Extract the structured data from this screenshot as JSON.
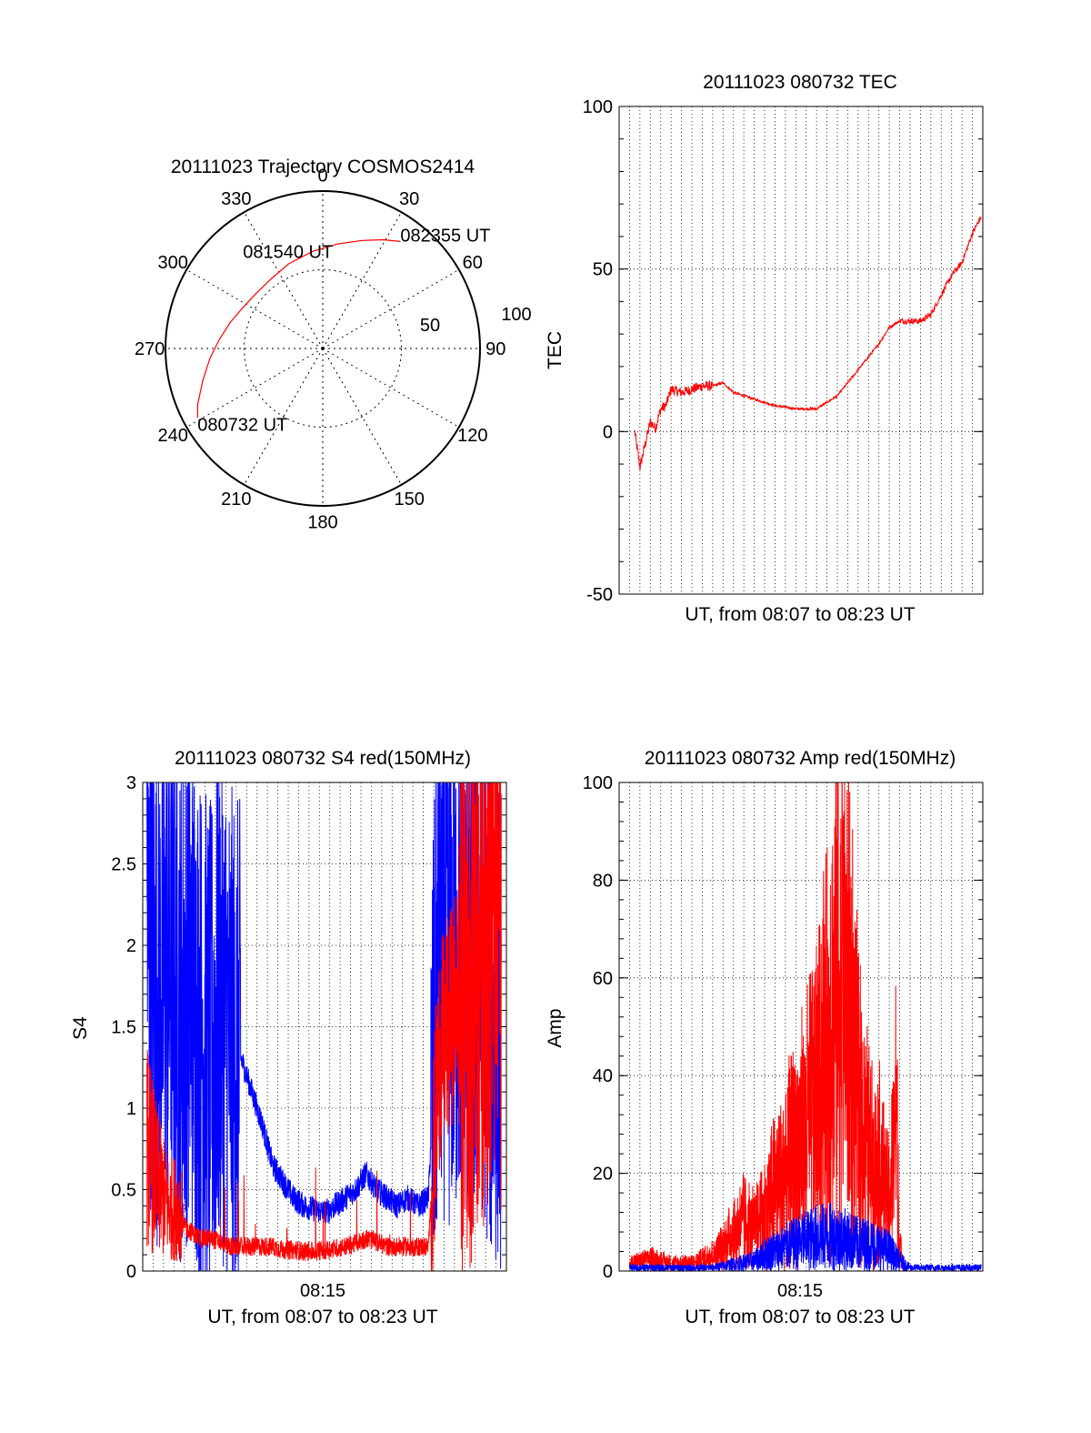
{
  "chart_data": [
    {
      "type": "polar",
      "title": "20111023 Trajectory COSMOS2414",
      "azimuth_labels": [
        "0",
        "30",
        "60",
        "90",
        "120",
        "150",
        "180",
        "210",
        "240",
        "270",
        "300",
        "330"
      ],
      "azimuth_degrees": [
        0,
        30,
        60,
        90,
        120,
        150,
        180,
        210,
        240,
        270,
        300,
        330
      ],
      "radial_range": [
        0,
        100
      ],
      "radial_rings": [
        50,
        100
      ],
      "radial_labels": [
        "50",
        "100"
      ],
      "grid": true,
      "series": [
        {
          "color": "#ff0000",
          "az": [
            241,
            246,
            255,
            265,
            275,
            286,
            297,
            309,
            323,
            338,
            354,
            8,
            20,
            29,
            36
          ],
          "r": [
            91,
            87,
            79,
            72,
            66,
            61,
            57,
            55,
            55,
            58,
            62,
            67,
            73,
            79,
            84
          ]
        }
      ],
      "annotations": [
        {
          "text": "080732 UT",
          "az": 241,
          "r": 91
        },
        {
          "text": "081540 UT",
          "az": 335,
          "r": 38
        },
        {
          "text": "082355 UT",
          "az": 36,
          "r": 84
        }
      ]
    },
    {
      "type": "line",
      "title": "20111023 080732 TEC",
      "xlabel": "UT, from 08:07 to 08:23 UT",
      "ylabel": "TEC",
      "xlim": [
        "08:06:30",
        "08:24:00"
      ],
      "ylim": [
        -50,
        100
      ],
      "yticks": [
        -50,
        0,
        50,
        100
      ],
      "grid": true,
      "series": [
        {
          "color": "#ff0000",
          "x": [
            "08:07:15",
            "08:07:30",
            "08:07:45",
            "08:08:00",
            "08:08:15",
            "08:08:30",
            "08:08:45",
            "08:09:00",
            "08:09:30",
            "08:10:00",
            "08:10:30",
            "08:11:00",
            "08:11:30",
            "08:12:00",
            "08:13:00",
            "08:14:00",
            "08:15:00",
            "08:16:00",
            "08:17:00",
            "08:18:00",
            "08:19:00",
            "08:19:30",
            "08:20:00",
            "08:20:30",
            "08:21:00",
            "08:21:30",
            "08:22:00",
            "08:22:30",
            "08:23:00",
            "08:23:30",
            "08:23:55"
          ],
          "y": [
            0,
            -11,
            -4,
            3,
            1,
            7,
            8,
            13,
            12,
            13,
            14,
            14,
            15,
            12,
            10,
            8,
            7,
            7,
            11,
            19,
            27,
            32,
            34,
            34,
            34,
            36,
            42,
            48,
            52,
            61,
            66
          ]
        }
      ]
    },
    {
      "type": "line",
      "title": "20111023 080732 S4 red(150MHz)",
      "xlabel": "UT, from 08:07 to 08:23 UT",
      "ylabel": "S4",
      "xlim": [
        "08:06:30",
        "08:24:00"
      ],
      "ylim": [
        0,
        3
      ],
      "yticks": [
        0,
        0.5,
        1,
        1.5,
        2,
        2.5,
        3
      ],
      "ytick_labels": [
        "0",
        "0.5",
        "1",
        "1.5",
        "2",
        "2.5",
        "3"
      ],
      "xticks": [
        "08:15"
      ],
      "grid": true,
      "series": [
        {
          "color": "#0000ff",
          "x": [
            "08:06:42",
            "08:07:15",
            "08:07:45",
            "08:08:15",
            "08:08:45",
            "08:09:15",
            "08:09:45",
            "08:10:15",
            "08:10:45",
            "08:11:15",
            "08:11:45",
            "08:12:15",
            "08:12:45",
            "08:13:15",
            "08:13:45",
            "08:14:15",
            "08:14:45",
            "08:15:15",
            "08:15:45",
            "08:16:15",
            "08:16:45",
            "08:17:15",
            "08:17:45",
            "08:18:15",
            "08:18:45",
            "08:19:15",
            "08:19:45",
            "08:20:15",
            "08:20:45",
            "08:21:15",
            "08:21:45",
            "08:22:15",
            "08:22:45",
            "08:23:15",
            "08:23:45"
          ],
          "y": [
            2.1,
            1.7,
            1.9,
            1.6,
            1.8,
            1.5,
            1.3,
            1.7,
            1.4,
            1.3,
            1.1,
            0.9,
            0.65,
            0.55,
            0.45,
            0.4,
            0.38,
            0.36,
            0.4,
            0.45,
            0.5,
            0.6,
            0.5,
            0.45,
            0.4,
            0.45,
            0.4,
            0.45,
            2.0,
            1.8,
            1.9,
            1.7,
            2.0,
            1.6,
            1.6
          ]
        },
        {
          "color": "#ff0000",
          "x": [
            "08:06:42",
            "08:07:15",
            "08:07:45",
            "08:08:15",
            "08:08:45",
            "08:09:15",
            "08:09:45",
            "08:10:15",
            "08:10:45",
            "08:11:15",
            "08:11:45",
            "08:12:15",
            "08:12:45",
            "08:13:15",
            "08:13:45",
            "08:14:15",
            "08:14:45",
            "08:15:15",
            "08:15:45",
            "08:16:15",
            "08:16:45",
            "08:17:15",
            "08:17:45",
            "08:18:15",
            "08:18:45",
            "08:19:15",
            "08:19:45",
            "08:20:15",
            "08:20:45",
            "08:21:15",
            "08:21:45",
            "08:22:15",
            "08:22:45",
            "08:23:15",
            "08:23:45"
          ],
          "y": [
            0.6,
            0.4,
            0.3,
            0.3,
            0.25,
            0.2,
            0.2,
            0.18,
            0.15,
            0.15,
            0.15,
            0.15,
            0.15,
            0.13,
            0.13,
            0.12,
            0.12,
            0.13,
            0.14,
            0.15,
            0.17,
            0.2,
            0.18,
            0.15,
            0.15,
            0.15,
            0.15,
            0.15,
            1.3,
            1.5,
            1.8,
            2.0,
            2.2,
            2.4,
            2.2
          ]
        }
      ]
    },
    {
      "type": "line",
      "title": "20111023 080732 Amp red(150MHz)",
      "xlabel": "UT, from 08:07 to 08:23 UT",
      "ylabel": "Amp",
      "xlim": [
        "08:06:30",
        "08:24:00"
      ],
      "ylim": [
        0,
        100
      ],
      "yticks": [
        0,
        20,
        40,
        60,
        80,
        100
      ],
      "xticks": [
        "08:15"
      ],
      "grid": true,
      "series": [
        {
          "color": "#ff0000",
          "x": [
            "08:07:00",
            "08:08:00",
            "08:09:00",
            "08:10:00",
            "08:11:00",
            "08:11:30",
            "08:12:00",
            "08:12:30",
            "08:13:00",
            "08:13:30",
            "08:14:00",
            "08:14:30",
            "08:15:00",
            "08:15:30",
            "08:16:00",
            "08:16:30",
            "08:17:00",
            "08:17:30",
            "08:18:00",
            "08:18:30",
            "08:19:00",
            "08:19:30",
            "08:19:50",
            "08:20:00",
            "08:20:15"
          ],
          "y": [
            2,
            3,
            2,
            2,
            4,
            6,
            9,
            12,
            10,
            14,
            20,
            24,
            30,
            35,
            42,
            56,
            72,
            68,
            40,
            28,
            26,
            16,
            39,
            6,
            0
          ]
        },
        {
          "color": "#0000ff",
          "x": [
            "08:07:00",
            "08:08:00",
            "08:09:00",
            "08:10:00",
            "08:11:00",
            "08:12:00",
            "08:13:00",
            "08:13:30",
            "08:14:00",
            "08:14:30",
            "08:15:00",
            "08:15:30",
            "08:16:00",
            "08:16:30",
            "08:17:00",
            "08:17:30",
            "08:18:00",
            "08:18:30",
            "08:19:00",
            "08:19:30",
            "08:20:00",
            "08:20:30",
            "08:21:00",
            "08:22:00",
            "08:23:00",
            "08:23:55"
          ],
          "y": [
            1,
            1,
            1,
            1,
            1,
            2,
            3,
            5,
            6,
            7,
            8,
            9,
            10,
            10,
            10,
            9,
            8,
            8,
            7,
            6,
            3,
            1,
            1,
            1,
            1,
            1
          ]
        }
      ]
    }
  ]
}
